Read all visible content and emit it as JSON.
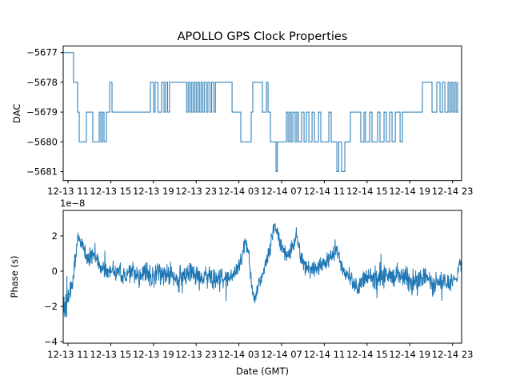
{
  "chart_data": [
    {
      "type": "line",
      "subtype": "step",
      "title": "APOLLO GPS Clock Properties",
      "ylabel": "DAC",
      "xlabel": "",
      "legend": "none",
      "grid": false,
      "line_color": "#1f77b4",
      "xlim_hours": [
        10.55,
        47.85
      ],
      "ylim": [
        -5681.3,
        -5676.78
      ],
      "x_tick_hours": [
        11,
        15,
        19,
        23,
        27,
        31,
        35,
        39,
        43,
        47
      ],
      "x_ticklabels": [
        "12-13 11",
        "12-13 15",
        "12-13 19",
        "12-13 23",
        "12-14 03",
        "12-14 07",
        "12-14 11",
        "12-14 15",
        "12-14 19",
        "12-14 23"
      ],
      "y_ticks": [
        -5677,
        -5678,
        -5679,
        -5680,
        -5681
      ],
      "y_ticklabels": [
        "−5677",
        "−5678",
        "−5679",
        "−5680",
        "−5681"
      ],
      "steps": [
        [
          10.55,
          -5677
        ],
        [
          11.52,
          -5678
        ],
        [
          11.9,
          -5679
        ],
        [
          12.05,
          -5680
        ],
        [
          12.72,
          -5679
        ],
        [
          13.32,
          -5680
        ],
        [
          13.92,
          -5679
        ],
        [
          14.07,
          -5680
        ],
        [
          14.22,
          -5679
        ],
        [
          14.37,
          -5680
        ],
        [
          14.6,
          -5679
        ],
        [
          14.9,
          -5678
        ],
        [
          15.12,
          -5679
        ],
        [
          18.71,
          -5678
        ],
        [
          19.01,
          -5679
        ],
        [
          19.16,
          -5678
        ],
        [
          19.42,
          -5679
        ],
        [
          19.76,
          -5678
        ],
        [
          19.99,
          -5679
        ],
        [
          20.14,
          -5678
        ],
        [
          20.32,
          -5679
        ],
        [
          20.5,
          -5678
        ],
        [
          22.1,
          -5679
        ],
        [
          22.25,
          -5678
        ],
        [
          22.4,
          -5679
        ],
        [
          22.55,
          -5678
        ],
        [
          22.7,
          -5679
        ],
        [
          22.85,
          -5678
        ],
        [
          23.0,
          -5679
        ],
        [
          23.15,
          -5678
        ],
        [
          23.3,
          -5679
        ],
        [
          23.45,
          -5678
        ],
        [
          23.6,
          -5679
        ],
        [
          23.75,
          -5678
        ],
        [
          23.95,
          -5679
        ],
        [
          24.1,
          -5678
        ],
        [
          24.3,
          -5679
        ],
        [
          24.45,
          -5678
        ],
        [
          24.65,
          -5679
        ],
        [
          24.8,
          -5678
        ],
        [
          26.36,
          -5679
        ],
        [
          27.18,
          -5680
        ],
        [
          28.15,
          -5679
        ],
        [
          28.3,
          -5678
        ],
        [
          29.2,
          -5679
        ],
        [
          29.58,
          -5678
        ],
        [
          29.73,
          -5679
        ],
        [
          29.95,
          -5680
        ],
        [
          30.48,
          -5681
        ],
        [
          30.6,
          -5680
        ],
        [
          31.45,
          -5679
        ],
        [
          31.6,
          -5680
        ],
        [
          31.75,
          -5679
        ],
        [
          31.9,
          -5680
        ],
        [
          32.05,
          -5679
        ],
        [
          32.27,
          -5680
        ],
        [
          32.42,
          -5679
        ],
        [
          32.57,
          -5680
        ],
        [
          32.87,
          -5679
        ],
        [
          33.1,
          -5680
        ],
        [
          33.32,
          -5679
        ],
        [
          33.55,
          -5680
        ],
        [
          33.85,
          -5679
        ],
        [
          34.07,
          -5680
        ],
        [
          34.45,
          -5679
        ],
        [
          34.67,
          -5680
        ],
        [
          35.42,
          -5679
        ],
        [
          35.64,
          -5680
        ],
        [
          36.17,
          -5681
        ],
        [
          36.35,
          -5680
        ],
        [
          36.62,
          -5681
        ],
        [
          36.92,
          -5680
        ],
        [
          37.44,
          -5679
        ],
        [
          38.41,
          -5680
        ],
        [
          38.71,
          -5679
        ],
        [
          38.86,
          -5680
        ],
        [
          39.24,
          -5679
        ],
        [
          39.46,
          -5680
        ],
        [
          39.99,
          -5679
        ],
        [
          40.21,
          -5680
        ],
        [
          40.59,
          -5679
        ],
        [
          40.81,
          -5680
        ],
        [
          41.11,
          -5679
        ],
        [
          41.34,
          -5680
        ],
        [
          41.64,
          -5679
        ],
        [
          42.09,
          -5680
        ],
        [
          42.31,
          -5679
        ],
        [
          44.18,
          -5678
        ],
        [
          45.08,
          -5679
        ],
        [
          45.53,
          -5678
        ],
        [
          45.83,
          -5679
        ],
        [
          46.06,
          -5678
        ],
        [
          46.28,
          -5679
        ],
        [
          46.58,
          -5678
        ],
        [
          46.73,
          -5679
        ],
        [
          46.88,
          -5678
        ],
        [
          47.03,
          -5679
        ],
        [
          47.18,
          -5678
        ],
        [
          47.33,
          -5679
        ],
        [
          47.48,
          -5678
        ],
        [
          47.55,
          -5678
        ]
      ]
    },
    {
      "type": "line",
      "subtype": "noisy",
      "title": "",
      "ylabel": "Phase (s)",
      "xlabel": "Date (GMT)",
      "offset_text": "1e−8",
      "unit_scale": 1e-08,
      "legend": "none",
      "grid": false,
      "line_color": "#1f77b4",
      "xlim_hours": [
        10.55,
        47.85
      ],
      "ylim": [
        -4.09,
        3.45
      ],
      "x_tick_hours": [
        11,
        15,
        19,
        23,
        27,
        31,
        35,
        39,
        43,
        47
      ],
      "x_ticklabels": [
        "12-13 11",
        "12-13 15",
        "12-13 19",
        "12-13 23",
        "12-14 03",
        "12-14 07",
        "12-14 11",
        "12-14 15",
        "12-14 19",
        "12-14 23"
      ],
      "y_ticks": [
        2,
        0,
        -2,
        -4
      ],
      "y_ticklabels": [
        "2",
        "0",
        "−2",
        "−4"
      ],
      "noise_seed": 987654321,
      "points_per_hour": 40,
      "envelope": [
        [
          10.55,
          -2.0,
          1.6
        ],
        [
          10.75,
          -2.2,
          1.0
        ],
        [
          11.0,
          -1.6,
          0.7
        ],
        [
          11.3,
          -0.8,
          0.6
        ],
        [
          11.6,
          0.3,
          0.6
        ],
        [
          11.9,
          1.9,
          0.5
        ],
        [
          12.2,
          1.7,
          0.5
        ],
        [
          12.6,
          1.1,
          0.6
        ],
        [
          13.0,
          0.8,
          0.5
        ],
        [
          13.4,
          1.0,
          0.6
        ],
        [
          13.8,
          0.6,
          0.5
        ],
        [
          14.2,
          0.1,
          0.5
        ],
        [
          14.7,
          -0.2,
          0.5
        ],
        [
          15.2,
          0.1,
          0.5
        ],
        [
          15.8,
          -0.1,
          0.6
        ],
        [
          16.4,
          -0.3,
          0.6
        ],
        [
          17.0,
          0.0,
          0.6
        ],
        [
          17.6,
          -0.2,
          0.7
        ],
        [
          18.2,
          -0.1,
          0.7
        ],
        [
          18.8,
          -0.4,
          0.7
        ],
        [
          19.4,
          -0.1,
          0.7
        ],
        [
          20.0,
          -0.3,
          0.6
        ],
        [
          20.6,
          0.0,
          0.7
        ],
        [
          21.2,
          -0.5,
          0.8
        ],
        [
          21.8,
          -0.3,
          0.7
        ],
        [
          22.4,
          -0.1,
          0.6
        ],
        [
          23.0,
          -0.2,
          0.6
        ],
        [
          23.6,
          -0.4,
          0.6
        ],
        [
          24.2,
          -0.3,
          0.7
        ],
        [
          24.8,
          -0.4,
          0.8
        ],
        [
          25.4,
          -0.5,
          0.7
        ],
        [
          26.0,
          -0.3,
          0.6
        ],
        [
          26.6,
          -0.1,
          0.5
        ],
        [
          27.1,
          0.4,
          0.5
        ],
        [
          27.6,
          1.7,
          0.5
        ],
        [
          27.9,
          1.1,
          0.5
        ],
        [
          28.2,
          -0.8,
          0.5
        ],
        [
          28.45,
          -1.6,
          0.4
        ],
        [
          28.8,
          -0.9,
          0.5
        ],
        [
          29.2,
          -0.1,
          0.5
        ],
        [
          29.6,
          0.5,
          0.5
        ],
        [
          30.0,
          1.6,
          0.6
        ],
        [
          30.35,
          2.7,
          0.4
        ],
        [
          30.7,
          1.9,
          0.5
        ],
        [
          31.1,
          1.2,
          0.5
        ],
        [
          31.6,
          0.8,
          0.6
        ],
        [
          32.0,
          1.3,
          0.5
        ],
        [
          32.35,
          2.1,
          0.4
        ],
        [
          32.7,
          1.1,
          0.5
        ],
        [
          33.1,
          0.5,
          0.6
        ],
        [
          33.6,
          0.2,
          0.6
        ],
        [
          34.2,
          0.1,
          0.6
        ],
        [
          34.8,
          0.3,
          0.6
        ],
        [
          35.5,
          0.7,
          0.5
        ],
        [
          36.1,
          1.2,
          0.5
        ],
        [
          36.6,
          0.4,
          0.5
        ],
        [
          37.2,
          -0.2,
          0.5
        ],
        [
          37.8,
          -0.8,
          0.6
        ],
        [
          38.1,
          -1.1,
          0.5
        ],
        [
          38.6,
          -0.4,
          0.6
        ],
        [
          39.2,
          -0.2,
          0.6
        ],
        [
          39.8,
          -0.4,
          0.7
        ],
        [
          40.4,
          -0.3,
          0.6
        ],
        [
          41.0,
          -0.2,
          0.6
        ],
        [
          41.6,
          -0.3,
          0.6
        ],
        [
          42.2,
          -0.1,
          0.6
        ],
        [
          42.8,
          -0.4,
          0.7
        ],
        [
          43.3,
          -0.8,
          0.9
        ],
        [
          43.8,
          -0.5,
          0.7
        ],
        [
          44.3,
          -0.2,
          0.6
        ],
        [
          44.8,
          -0.5,
          0.6
        ],
        [
          45.2,
          -0.9,
          0.7
        ],
        [
          45.7,
          -0.4,
          0.6
        ],
        [
          46.2,
          -0.6,
          0.6
        ],
        [
          46.7,
          -0.8,
          0.6
        ],
        [
          47.1,
          -0.5,
          0.6
        ],
        [
          47.5,
          -0.3,
          0.6
        ],
        [
          47.75,
          0.5,
          0.7
        ],
        [
          47.83,
          0.3,
          0.4
        ]
      ]
    }
  ]
}
